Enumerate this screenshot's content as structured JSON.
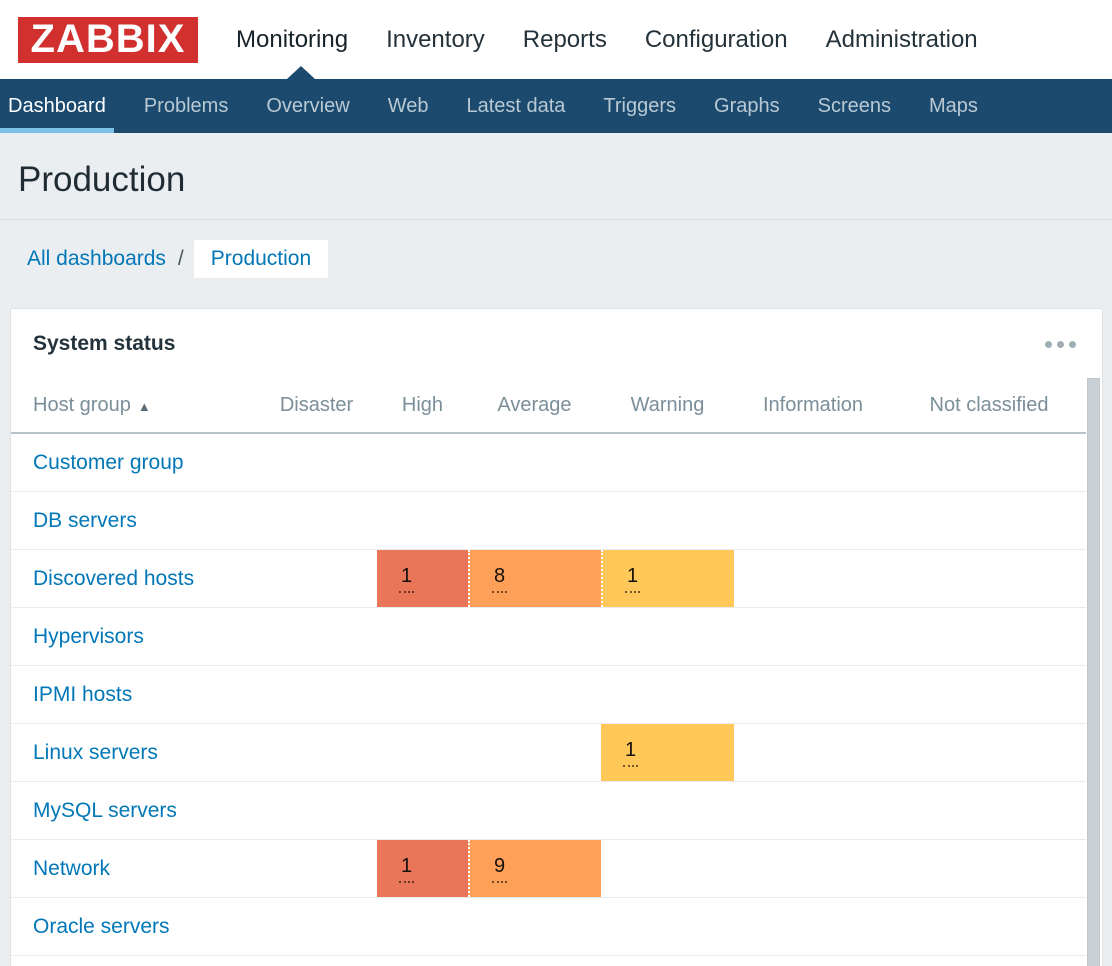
{
  "brand": {
    "logo_text": "ZABBIX"
  },
  "colors": {
    "brand_red": "#d22f2f",
    "nav_background": "#1b4a6e",
    "nav_active_underline": "#7ac1e8",
    "link_blue": "#0277b8",
    "severity": {
      "high": "#e97659",
      "average": "#ffa059",
      "warning": "#ffc859"
    }
  },
  "header": {
    "nav": [
      {
        "label": "Monitoring",
        "active": true
      },
      {
        "label": "Inventory",
        "active": false
      },
      {
        "label": "Reports",
        "active": false
      },
      {
        "label": "Configuration",
        "active": false
      },
      {
        "label": "Administration",
        "active": false
      }
    ]
  },
  "subnav": {
    "items": [
      {
        "label": "Dashboard",
        "active": true
      },
      {
        "label": "Problems",
        "active": false
      },
      {
        "label": "Overview",
        "active": false
      },
      {
        "label": "Web",
        "active": false
      },
      {
        "label": "Latest data",
        "active": false
      },
      {
        "label": "Triggers",
        "active": false
      },
      {
        "label": "Graphs",
        "active": false
      },
      {
        "label": "Screens",
        "active": false
      },
      {
        "label": "Maps",
        "active": false
      }
    ]
  },
  "page": {
    "title": "Production"
  },
  "breadcrumb": {
    "items": [
      {
        "label": "All dashboards",
        "type": "link"
      },
      {
        "label": "Production",
        "type": "chip-selected"
      }
    ],
    "separator": "/"
  },
  "widget": {
    "title": "System status",
    "menu_icon": "ellipsis-icon",
    "table": {
      "columns": [
        "Host group",
        "Disaster",
        "High",
        "Average",
        "Warning",
        "Information",
        "Not classified"
      ],
      "sort_column": "Host group",
      "sort_direction": "ascending",
      "sort_indicator": "▲",
      "severity_keys": [
        "disaster",
        "high",
        "average",
        "warning",
        "information",
        "not_classified"
      ],
      "rows": [
        {
          "group": "Customer group",
          "counts": {}
        },
        {
          "group": "DB servers",
          "counts": {}
        },
        {
          "group": "Discovered hosts",
          "counts": {
            "high": 1,
            "average": 8,
            "warning": 1
          }
        },
        {
          "group": "Hypervisors",
          "counts": {}
        },
        {
          "group": "IPMI hosts",
          "counts": {}
        },
        {
          "group": "Linux servers",
          "counts": {
            "warning": 1
          }
        },
        {
          "group": "MySQL servers",
          "counts": {}
        },
        {
          "group": "Network",
          "counts": {
            "high": 1,
            "average": 9
          }
        },
        {
          "group": "Oracle servers",
          "counts": {}
        }
      ]
    }
  }
}
